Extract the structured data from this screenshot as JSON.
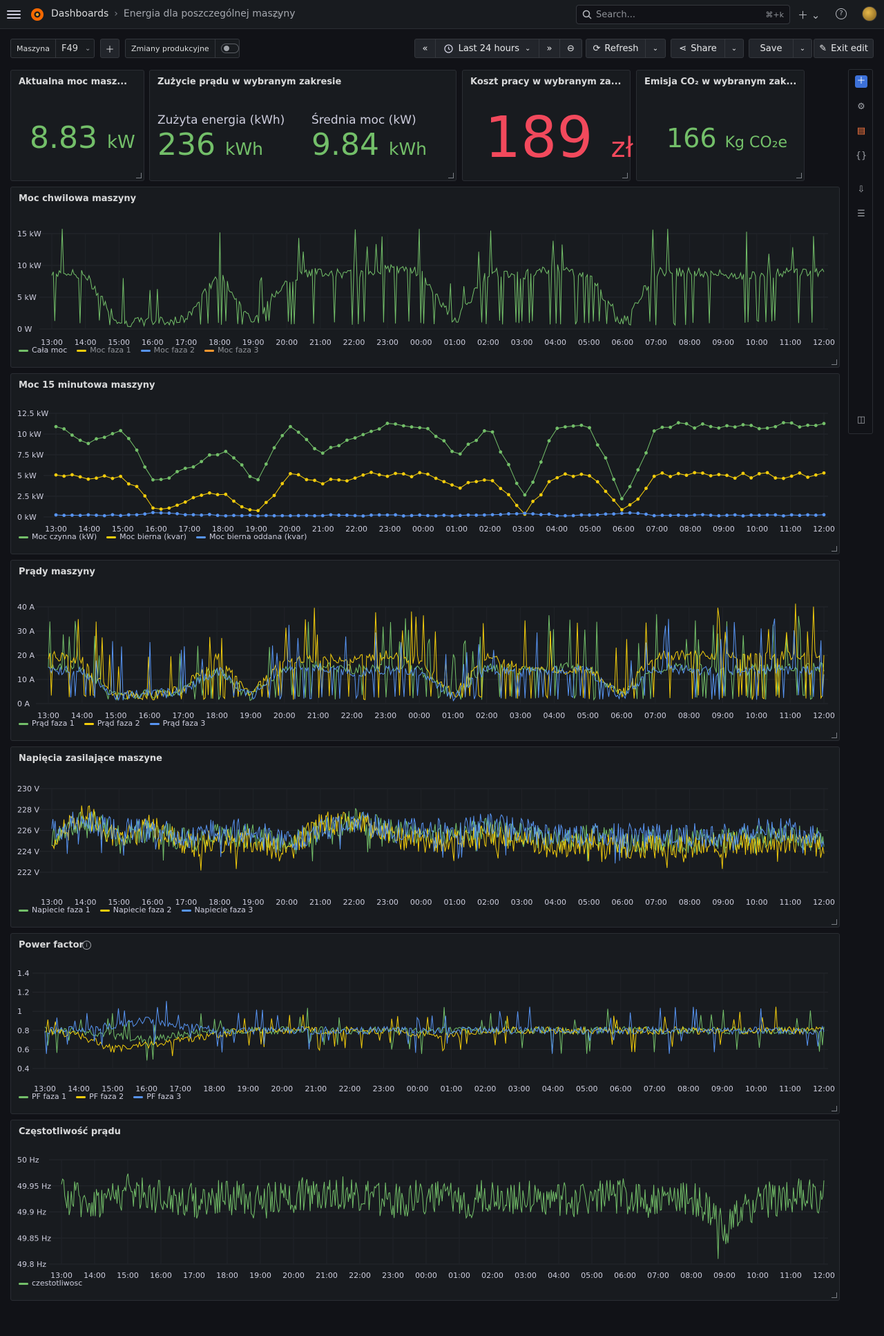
{
  "topbar": {
    "crumb_dashboards": "Dashboards",
    "crumb_separator": "›",
    "crumb_title": "Energia dla poszczególnej maszyny",
    "search_placeholder": "Search...",
    "search_shortcut": "⌘+k",
    "icons": [
      "menu-icon",
      "grafana-logo",
      "star-icon",
      "search-icon",
      "plus-icon",
      "help-icon",
      "avatar"
    ]
  },
  "controls": {
    "machine_label": "Maszyna",
    "machine_value": "F49",
    "shifts_label": "Zmiany produkcyjne",
    "time_range": "Last 24 hours",
    "refresh": "Refresh",
    "share": "Share",
    "save": "Save",
    "exit_edit": "Exit edit"
  },
  "colors": {
    "green": "#73bf69",
    "yellow": "#f2cc0c",
    "blue": "#5794f2",
    "orange": "#ff9830",
    "red": "#f2495c",
    "accent": "#3d71d9"
  },
  "stats": {
    "current_power": {
      "title": "Aktualna moc masz...",
      "value": "8.83",
      "unit": "kW"
    },
    "consumption": {
      "title": "Zużycie prądu w wybranym zakresie",
      "energy_label": "Zużyta energia (kWh)",
      "energy_value": "236",
      "energy_unit": "kWh",
      "avg_label": "Średnia moc (kW)",
      "avg_value": "9.84",
      "avg_unit": "kWh"
    },
    "cost": {
      "title": "Koszt pracy w wybranym za...",
      "value": "189",
      "unit": "zł"
    },
    "emission": {
      "title": "Emisja CO₂ w wybranym zak...",
      "value": "166",
      "unit": "Kg CO₂e"
    }
  },
  "x_ticks": [
    "13:00",
    "14:00",
    "15:00",
    "16:00",
    "17:00",
    "18:00",
    "19:00",
    "20:00",
    "21:00",
    "22:00",
    "23:00",
    "00:00",
    "01:00",
    "02:00",
    "03:00",
    "04:00",
    "05:00",
    "06:00",
    "07:00",
    "08:00",
    "09:00",
    "10:00",
    "11:00",
    "12:00"
  ],
  "panels": {
    "power_instant": {
      "title": "Moc chwilowa maszyny",
      "y_ticks": [
        "15 kW",
        "10 kW",
        "5 kW",
        "0 W"
      ],
      "legend": [
        "Cała moc",
        "Moc faza 1",
        "Moc faza 2",
        "Moc faza 3"
      ]
    },
    "power_15min": {
      "title": "Moc 15 minutowa maszyny",
      "y_ticks": [
        "12.5 kW",
        "10 kW",
        "7.5 kW",
        "5 kW",
        "2.5 kW",
        "0 kW"
      ],
      "legend": [
        "Moc czynna (kW)",
        "Moc bierna (kvar)",
        "Moc bierna oddana (kvar)"
      ]
    },
    "currents": {
      "title": "Prądy maszyny",
      "y_ticks": [
        "40 A",
        "30 A",
        "20 A",
        "10 A",
        "0 A"
      ],
      "legend": [
        "Prąd faza 1",
        "Prąd faza 2",
        "Prąd faza 3"
      ]
    },
    "voltages": {
      "title": "Napięcia zasilające maszyne",
      "y_ticks": [
        "230 V",
        "228 V",
        "226 V",
        "224 V",
        "222 V"
      ],
      "legend": [
        "Napiecie faza 1",
        "Napiecie faza 2",
        "Napiecie faza 3"
      ]
    },
    "power_factor": {
      "title": "Power factor",
      "y_ticks": [
        "1.4",
        "1.2",
        "1",
        "0.8",
        "0.6",
        "0.4"
      ],
      "legend": [
        "PF faza 1",
        "PF faza 2",
        "PF faza 3"
      ]
    },
    "frequency": {
      "title": "Częstotliwość prądu",
      "y_ticks": [
        "50 Hz",
        "49.95 Hz",
        "49.9 Hz",
        "49.85 Hz",
        "49.8 Hz"
      ],
      "legend": [
        "czestotliwosc"
      ]
    }
  },
  "chart_data": [
    {
      "type": "line",
      "title": "Moc chwilowa maszyny",
      "ylim": [
        0,
        15000
      ],
      "x": [
        "13:00",
        "14:00",
        "15:00",
        "16:00",
        "17:00",
        "18:00",
        "19:00",
        "20:00",
        "21:00",
        "22:00",
        "23:00",
        "00:00",
        "01:00",
        "02:00",
        "03:00",
        "04:00",
        "05:00",
        "06:00",
        "07:00",
        "08:00",
        "09:00",
        "10:00",
        "11:00",
        "12:00"
      ],
      "series": [
        {
          "name": "Cała moc",
          "values": [
            9000,
            8500,
            1000,
            1200,
            1500,
            9000,
            1000,
            8000,
            9000,
            8500,
            9500,
            9000,
            1000,
            9000,
            8500,
            9500,
            8500,
            1000,
            9000,
            9000,
            8500,
            8500,
            9000,
            9000
          ]
        }
      ]
    },
    {
      "type": "line",
      "title": "Moc 15 minutowa maszyny",
      "ylim": [
        0,
        12.5
      ],
      "x": [
        "13:00",
        "14:00",
        "15:00",
        "16:00",
        "17:00",
        "18:00",
        "19:00",
        "20:00",
        "21:00",
        "22:00",
        "23:00",
        "00:00",
        "01:00",
        "02:00",
        "03:00",
        "04:00",
        "05:00",
        "06:00",
        "07:00",
        "08:00",
        "09:00",
        "10:00",
        "11:00",
        "12:00"
      ],
      "series": [
        {
          "name": "Moc czynna (kW)",
          "values": [
            11,
            9,
            10.5,
            4,
            6,
            8,
            4.5,
            11,
            7.5,
            10,
            11,
            11,
            7.5,
            11,
            2,
            11,
            11,
            2,
            11,
            11,
            11,
            11,
            11,
            11
          ]
        },
        {
          "name": "Moc bierna (kvar)",
          "values": [
            5,
            4.5,
            5,
            1,
            2,
            3,
            0.5,
            5,
            4,
            5,
            5,
            5,
            3.5,
            5,
            0.5,
            5,
            5,
            0.5,
            5,
            5,
            5,
            5,
            5,
            5
          ]
        },
        {
          "name": "Moc bierna oddana (kvar)",
          "values": [
            0.2,
            0.2,
            0.2,
            0.5,
            0.3,
            0.2,
            0.2,
            0.2,
            0.2,
            0.2,
            0.2,
            0.2,
            0.2,
            0.2,
            0.5,
            0.2,
            0.2,
            0.5,
            0.2,
            0.2,
            0.2,
            0.2,
            0.2,
            0.2
          ]
        }
      ]
    },
    {
      "type": "line",
      "title": "Prądy maszyny",
      "ylim": [
        0,
        45
      ],
      "x": [
        "13:00",
        "14:00",
        "15:00",
        "16:00",
        "17:00",
        "18:00",
        "19:00",
        "20:00",
        "21:00",
        "22:00",
        "23:00",
        "00:00",
        "01:00",
        "02:00",
        "03:00",
        "04:00",
        "05:00",
        "06:00",
        "07:00",
        "08:00",
        "09:00",
        "10:00",
        "11:00",
        "12:00"
      ],
      "series": [
        {
          "name": "Prąd faza 1",
          "values": [
            15,
            14,
            3,
            4,
            5,
            15,
            3,
            15,
            16,
            14,
            15,
            14,
            3,
            15,
            14,
            15,
            15,
            3,
            15,
            15,
            14,
            15,
            15,
            15
          ]
        },
        {
          "name": "Prąd faza 2",
          "values": [
            20,
            18,
            4,
            3,
            6,
            20,
            4,
            18,
            19,
            18,
            20,
            18,
            4,
            20,
            15,
            14,
            14,
            4,
            20,
            20,
            20,
            20,
            20,
            20
          ]
        },
        {
          "name": "Prąd faza 3",
          "values": [
            14,
            13,
            3,
            4,
            5,
            14,
            3,
            14,
            15,
            13,
            14,
            13,
            3,
            14,
            13,
            14,
            14,
            3,
            14,
            14,
            13,
            14,
            14,
            14
          ]
        }
      ]
    },
    {
      "type": "line",
      "title": "Napięcia zasilające maszyne",
      "ylim": [
        221,
        231
      ],
      "x": [
        "13:00",
        "14:00",
        "15:00",
        "16:00",
        "17:00",
        "18:00",
        "19:00",
        "20:00",
        "21:00",
        "22:00",
        "23:00",
        "00:00",
        "01:00",
        "02:00",
        "03:00",
        "04:00",
        "05:00",
        "06:00",
        "07:00",
        "08:00",
        "09:00",
        "10:00",
        "11:00",
        "12:00"
      ],
      "series": [
        {
          "name": "Napiecie faza 1",
          "values": [
            225.5,
            227,
            225.5,
            226,
            225,
            225.5,
            225.5,
            224.5,
            226,
            227,
            226,
            225.5,
            225.5,
            226,
            225.5,
            225,
            225.5,
            225,
            225,
            225,
            225,
            225.5,
            225.5,
            225
          ]
        },
        {
          "name": "Napiecie faza 2",
          "values": [
            225,
            227.5,
            225,
            226.5,
            224.5,
            225,
            225,
            224,
            226.5,
            227,
            225.5,
            225,
            225,
            225.5,
            225,
            224.5,
            225,
            224.5,
            224.5,
            224.5,
            224.5,
            225,
            225,
            224.5
          ]
        },
        {
          "name": "Napiecie faza 3",
          "values": [
            226,
            227,
            226,
            226,
            225.5,
            226,
            226,
            225,
            226,
            227,
            226,
            226,
            226,
            226.5,
            226,
            225.5,
            225.5,
            225.5,
            225.5,
            225.5,
            225.5,
            226,
            226,
            225.5
          ]
        }
      ]
    },
    {
      "type": "line",
      "title": "Power factor",
      "ylim": [
        0.4,
        1.4
      ],
      "x": [
        "13:00",
        "14:00",
        "15:00",
        "16:00",
        "17:00",
        "18:00",
        "19:00",
        "20:00",
        "21:00",
        "22:00",
        "23:00",
        "00:00",
        "01:00",
        "02:00",
        "03:00",
        "04:00",
        "05:00",
        "06:00",
        "07:00",
        "08:00",
        "09:00",
        "10:00",
        "11:00",
        "12:00"
      ],
      "series": [
        {
          "name": "PF faza 1",
          "values": [
            0.8,
            0.8,
            0.75,
            0.7,
            0.75,
            0.8,
            0.8,
            0.8,
            0.8,
            0.8,
            0.8,
            0.8,
            0.8,
            0.8,
            0.8,
            0.8,
            0.8,
            0.8,
            0.8,
            0.8,
            0.8,
            0.8,
            0.8,
            0.8
          ]
        },
        {
          "name": "PF faza 2",
          "values": [
            0.8,
            0.75,
            0.6,
            0.65,
            0.7,
            0.75,
            0.8,
            0.8,
            0.8,
            0.8,
            0.8,
            0.75,
            0.75,
            0.8,
            0.8,
            0.8,
            0.8,
            0.8,
            0.8,
            0.8,
            0.8,
            0.8,
            0.8,
            0.8
          ]
        },
        {
          "name": "PF faza 3",
          "values": [
            0.8,
            0.8,
            0.85,
            0.9,
            0.85,
            0.8,
            0.8,
            0.8,
            0.8,
            0.8,
            0.8,
            0.8,
            0.8,
            0.8,
            0.8,
            0.8,
            0.8,
            0.8,
            0.8,
            0.8,
            0.8,
            0.8,
            0.8,
            0.8
          ]
        }
      ]
    },
    {
      "type": "line",
      "title": "Częstotliwość prądu",
      "ylim": [
        49.8,
        50
      ],
      "x": [
        "13:00",
        "14:00",
        "15:00",
        "16:00",
        "17:00",
        "18:00",
        "19:00",
        "20:00",
        "21:00",
        "22:00",
        "23:00",
        "00:00",
        "01:00",
        "02:00",
        "03:00",
        "04:00",
        "05:00",
        "06:00",
        "07:00",
        "08:00",
        "09:00",
        "10:00",
        "11:00",
        "12:00"
      ],
      "series": [
        {
          "name": "czestotliwosc",
          "values": [
            49.93,
            49.92,
            49.94,
            49.93,
            49.92,
            49.93,
            49.92,
            49.93,
            49.94,
            49.93,
            49.92,
            49.93,
            49.92,
            49.93,
            49.93,
            49.92,
            49.93,
            49.93,
            49.92,
            49.93,
            49.87,
            49.92,
            49.93,
            49.93
          ]
        }
      ]
    }
  ]
}
